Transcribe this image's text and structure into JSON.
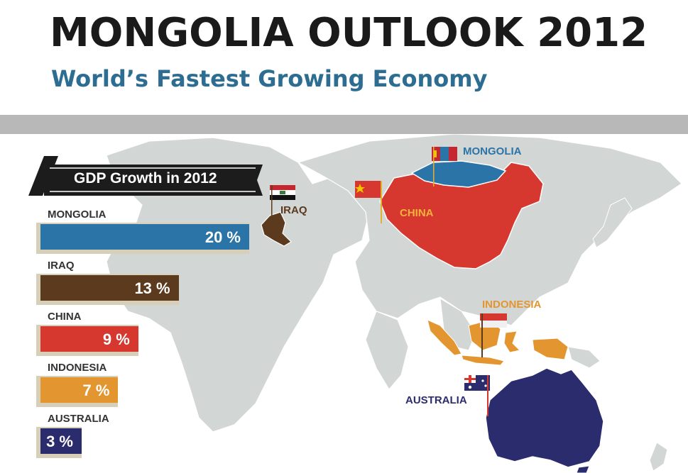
{
  "header": {
    "title": "MONGOLIA OUTLOOK 2012",
    "subtitle": "World’s Fastest Growing Economy"
  },
  "colors": {
    "mongolia": "#2b74a8",
    "iraq": "#5b3a1e",
    "china": "#d6382f",
    "indonesia": "#e3962f",
    "australia": "#2b2c6e",
    "map_land": "#d2d6d4",
    "banner": "#1c1c1c"
  },
  "chart_data": {
    "type": "bar",
    "orientation": "horizontal",
    "title": "GDP Growth in 2012",
    "categories": [
      "MONGOLIA",
      "IRAQ",
      "CHINA",
      "INDONESIA",
      "AUSTRALIA"
    ],
    "values": [
      20,
      13,
      9,
      7,
      3
    ],
    "value_labels": [
      "20 %",
      "13 %",
      "9 %",
      "7 %",
      "3 %"
    ],
    "unit": "%",
    "xlim": [
      0,
      20
    ]
  },
  "map": {
    "labels": {
      "mongolia": "MONGOLIA",
      "iraq": "IRAQ",
      "china": "CHINA",
      "indonesia": "INDONESIA",
      "australia": "AUSTRALIA"
    },
    "flags": [
      "mongolia-flag-icon",
      "iraq-flag-icon",
      "china-flag-icon",
      "indonesia-flag-icon",
      "australia-flag-icon"
    ]
  }
}
